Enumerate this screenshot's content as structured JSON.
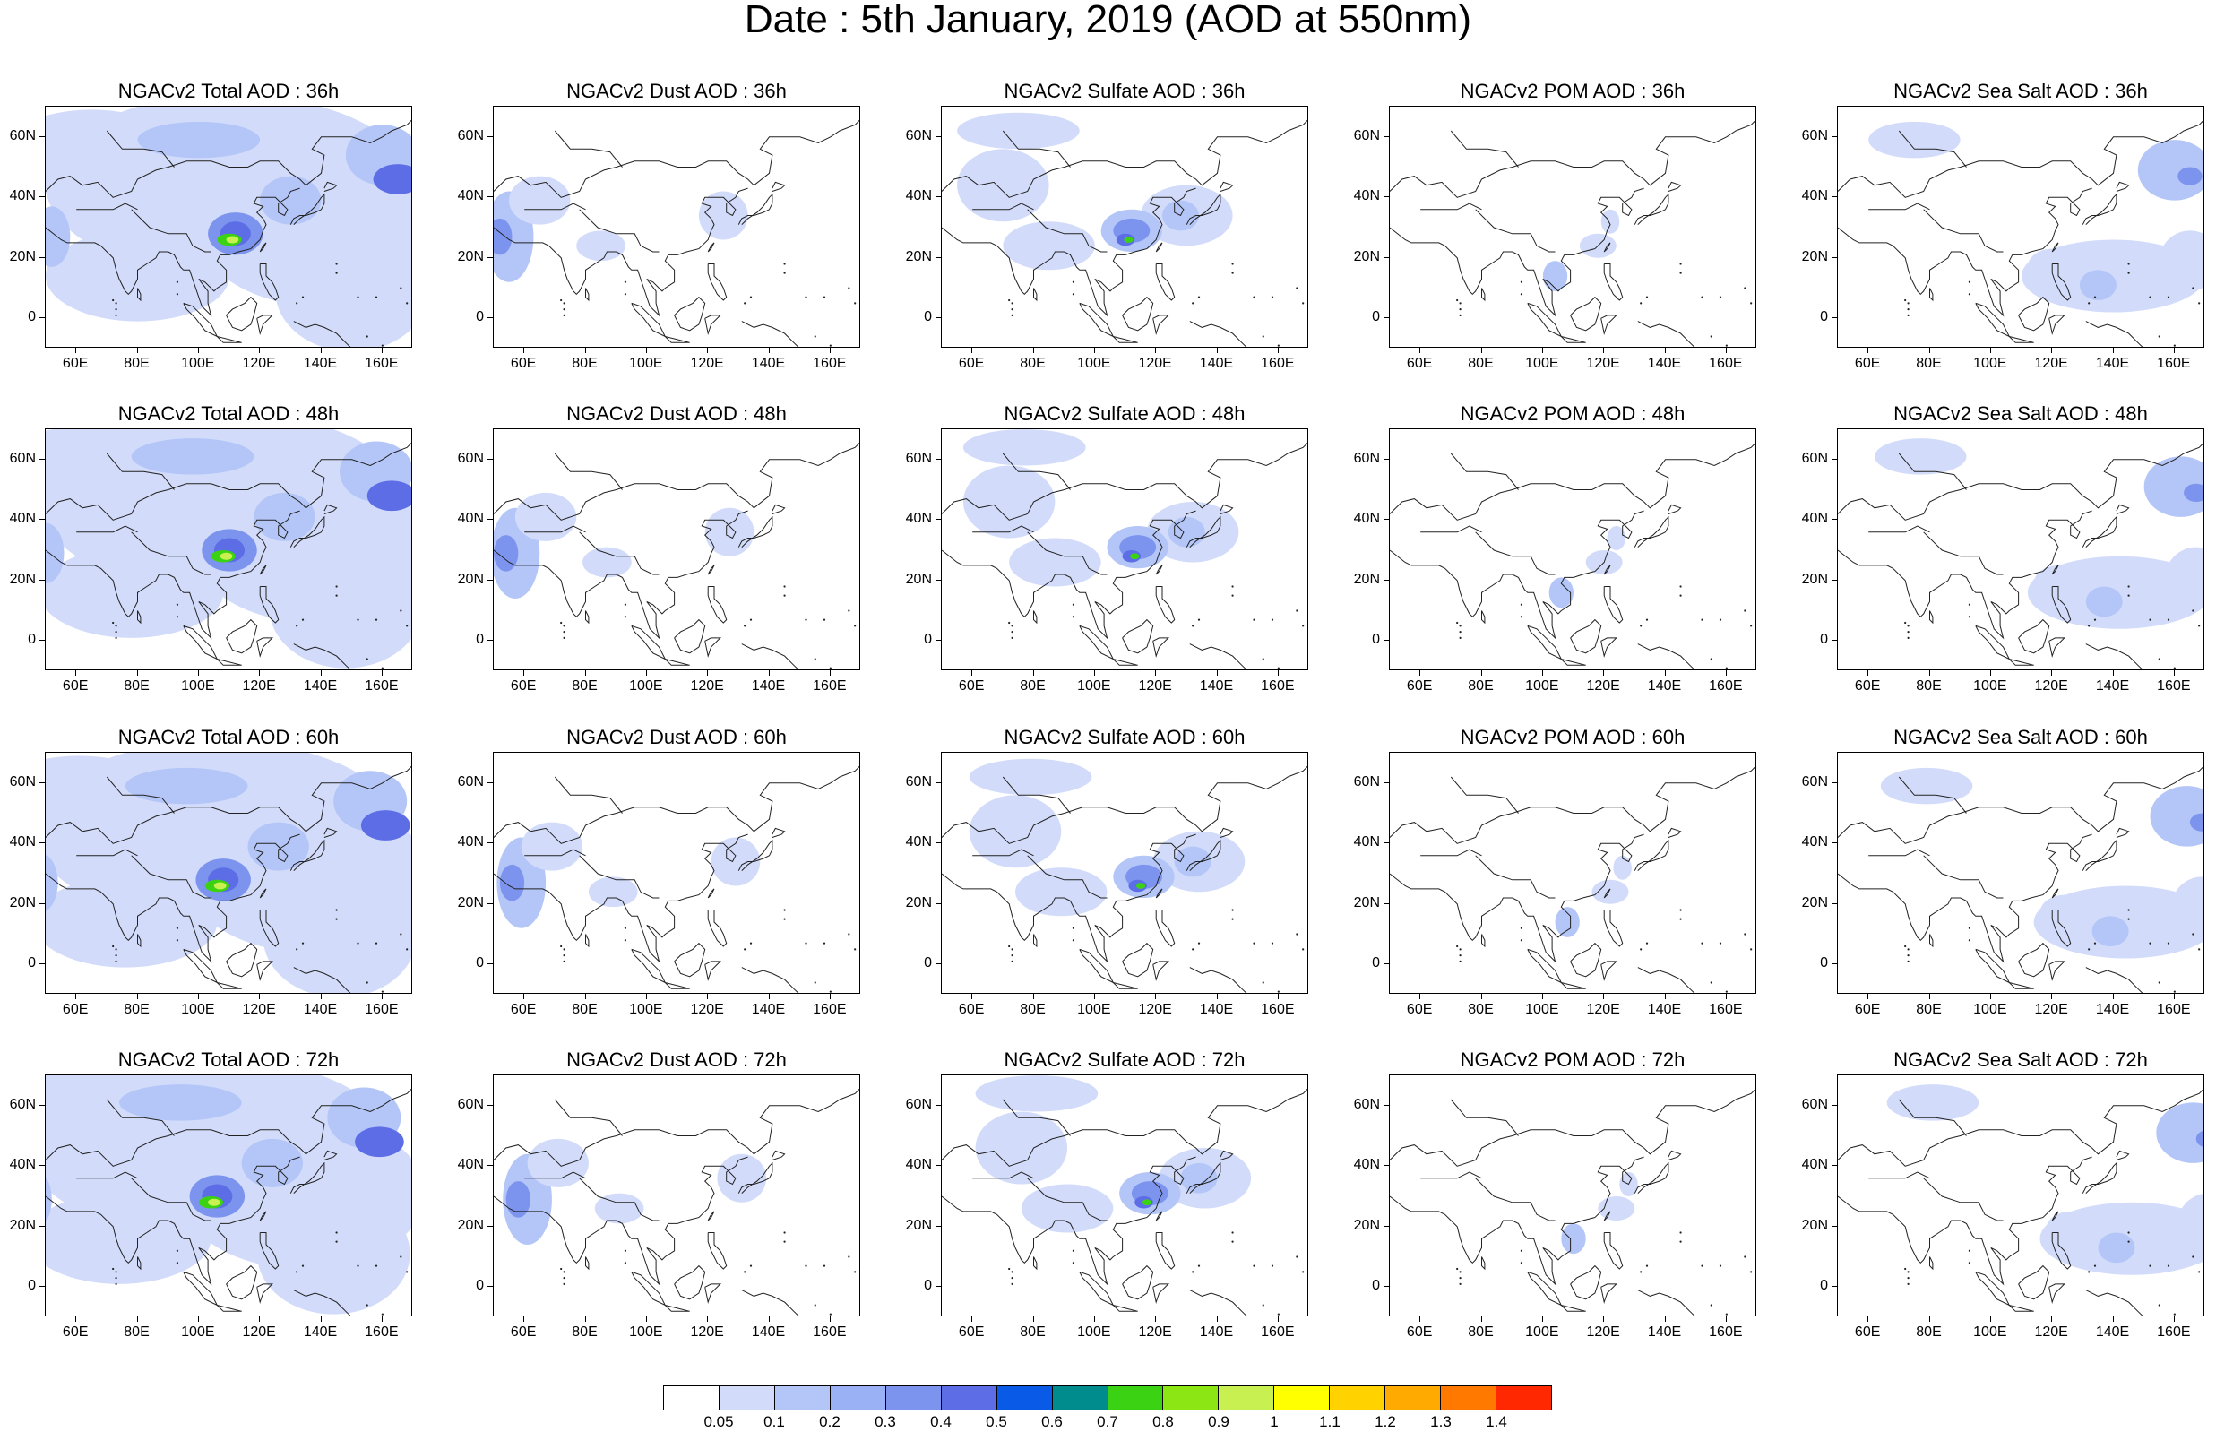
{
  "title": "Date : 5th January, 2019 (AOD at 550nm)",
  "panel_titles": [
    [
      "NGACv2 Total AOD : 36h",
      "NGACv2 Dust AOD : 36h",
      "NGACv2 Sulfate AOD : 36h",
      "NGACv2 POM AOD : 36h",
      "NGACv2 Sea Salt AOD : 36h"
    ],
    [
      "NGACv2 Total AOD : 48h",
      "NGACv2 Dust AOD : 48h",
      "NGACv2 Sulfate AOD : 48h",
      "NGACv2 POM AOD : 48h",
      "NGACv2 Sea Salt AOD : 48h"
    ],
    [
      "NGACv2 Total AOD : 60h",
      "NGACv2 Dust AOD : 60h",
      "NGACv2 Sulfate AOD : 60h",
      "NGACv2 POM AOD : 60h",
      "NGACv2 Sea Salt AOD : 60h"
    ],
    [
      "NGACv2 Total AOD : 72h",
      "NGACv2 Dust AOD : 72h",
      "NGACv2 Sulfate AOD : 72h",
      "NGACv2 POM AOD : 72h",
      "NGACv2 Sea Salt  AOD : 72h"
    ]
  ],
  "lat_labels": [
    "60N",
    "40N",
    "20N",
    "0"
  ],
  "lat_values": [
    60,
    40,
    20,
    0
  ],
  "lat_range": [
    -10,
    70
  ],
  "lon_labels": [
    "60E",
    "80E",
    "100E",
    "120E",
    "140E",
    "160E"
  ],
  "lon_values": [
    60,
    80,
    100,
    120,
    140,
    160
  ],
  "lon_range": [
    50,
    170
  ],
  "colorbar": {
    "labels": [
      "0.05",
      "0.1",
      "0.2",
      "0.3",
      "0.4",
      "0.5",
      "0.6",
      "0.7",
      "0.8",
      "0.9",
      "1",
      "1.1",
      "1.2",
      "1.3",
      "1.4"
    ],
    "colors": [
      "#ffffff",
      "#d2dcfa",
      "#b4c6f8",
      "#9bb1f5",
      "#7d94ef",
      "#5c6de6",
      "#0a5ae8",
      "#008c8c",
      "#3cd214",
      "#8ce614",
      "#c8f050",
      "#ffff00",
      "#ffd200",
      "#ffaa00",
      "#ff7800",
      "#ff2800"
    ]
  },
  "colors": {
    "light": "#d2dcfa",
    "mid": "#b4c6f8",
    "blue": "#7d94ef",
    "dark": "#5c6de6",
    "green": "#3cd214",
    "yellow": "#c8f050"
  }
}
